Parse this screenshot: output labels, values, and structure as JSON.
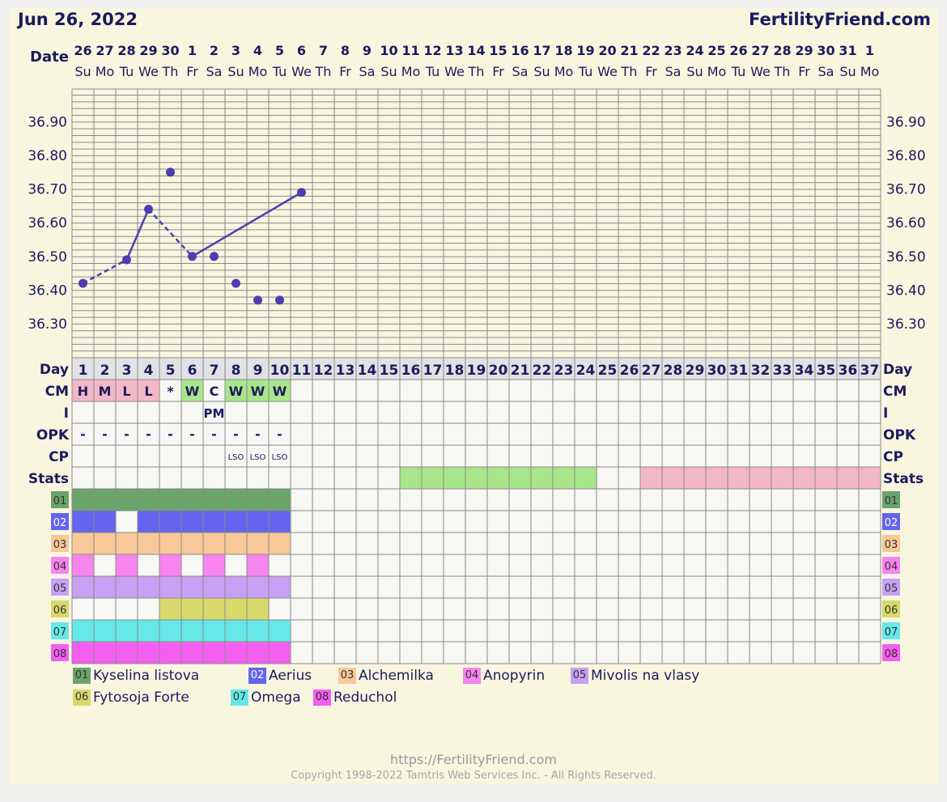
{
  "header": {
    "date": "Jun 26, 2022",
    "site": "FertilityFriend.com"
  },
  "colors": {
    "line": "#4b3fb0",
    "grid": "#8a8a8a",
    "chart_bg": "#f9f6e0",
    "cell_bg": "#f7f7f3",
    "day_row_bg": "#e2e2e4",
    "text": "#1c1a5e",
    "cm_pink": "#f2b8c8",
    "cm_green": "#a9e58a",
    "stats_green": "#a9e58a",
    "stats_pink": "#f2b8c8"
  },
  "chart_data": {
    "type": "line",
    "title": "",
    "xlabel": "Date",
    "ylabel": "",
    "ylim": [
      36.22,
      37.0
    ],
    "yticks": [
      "36.30",
      "36.40",
      "36.50",
      "36.60",
      "36.70",
      "36.80",
      "36.90"
    ],
    "dates": [
      "26",
      "27",
      "28",
      "29",
      "30",
      "1",
      "2",
      "3",
      "4",
      "5",
      "6",
      "7",
      "8",
      "9",
      "10",
      "11",
      "12",
      "13",
      "14",
      "15",
      "16",
      "17",
      "18",
      "19",
      "20",
      "21",
      "22",
      "23",
      "24",
      "25",
      "26",
      "27",
      "28",
      "29",
      "30",
      "31",
      "1"
    ],
    "weekdays": [
      "Su",
      "Mo",
      "Tu",
      "We",
      "Th",
      "Fr",
      "Sa",
      "Su",
      "Mo",
      "Tu",
      "We",
      "Th",
      "Fr",
      "Sa",
      "Su",
      "Mo",
      "Tu",
      "We",
      "Th",
      "Fr",
      "Sa",
      "Su",
      "Mo",
      "Tu",
      "We",
      "Th",
      "Fr",
      "Sa",
      "Su",
      "Mo",
      "Tu",
      "We",
      "Th",
      "Fr",
      "Sa",
      "Su",
      "Mo"
    ],
    "cycle_days": [
      "1",
      "2",
      "3",
      "4",
      "5",
      "6",
      "7",
      "8",
      "9",
      "10",
      "11",
      "12",
      "13",
      "14",
      "15",
      "16",
      "17",
      "18",
      "19",
      "20",
      "21",
      "22",
      "23",
      "24",
      "25",
      "26",
      "27",
      "28",
      "29",
      "30",
      "31",
      "32",
      "33",
      "34",
      "35",
      "36",
      "37"
    ],
    "temperatures": [
      {
        "day": 1,
        "value": 36.42
      },
      {
        "day": 3,
        "value": 36.49
      },
      {
        "day": 4,
        "value": 36.64
      },
      {
        "day": 5,
        "value": 36.75,
        "discarded": true
      },
      {
        "day": 6,
        "value": 36.5
      },
      {
        "day": 7,
        "value": 36.5
      },
      {
        "day": 8,
        "value": 36.42
      },
      {
        "day": 9,
        "value": 36.37
      },
      {
        "day": 10,
        "value": 36.37
      },
      {
        "day": 11,
        "value": 36.69
      }
    ],
    "segments": [
      {
        "from": 1,
        "to": 3,
        "style": "dashed"
      },
      {
        "from": 3,
        "to": 4,
        "style": "solid"
      },
      {
        "from": 4,
        "to": 6,
        "style": "dashed"
      },
      {
        "from": 6,
        "to": 11,
        "style": "solid"
      }
    ],
    "row_labels": [
      "CM",
      "I",
      "OPK",
      "CP",
      "Stats"
    ],
    "day_label": "Day",
    "cm": [
      {
        "day": 1,
        "text": "H",
        "color": "pink"
      },
      {
        "day": 2,
        "text": "M",
        "color": "pink"
      },
      {
        "day": 3,
        "text": "L",
        "color": "pink"
      },
      {
        "day": 4,
        "text": "L",
        "color": "pink"
      },
      {
        "day": 5,
        "text": "*",
        "color": "none"
      },
      {
        "day": 6,
        "text": "W",
        "color": "green"
      },
      {
        "day": 7,
        "text": "C",
        "color": "none"
      },
      {
        "day": 8,
        "text": "W",
        "color": "green"
      },
      {
        "day": 9,
        "text": "W",
        "color": "green"
      },
      {
        "day": 10,
        "text": "W",
        "color": "green"
      }
    ],
    "intercourse": [
      {
        "day": 7,
        "text": "PM"
      }
    ],
    "opk": [
      {
        "day": 1,
        "text": "-"
      },
      {
        "day": 2,
        "text": "-"
      },
      {
        "day": 3,
        "text": "-"
      },
      {
        "day": 4,
        "text": "-"
      },
      {
        "day": 5,
        "text": "-"
      },
      {
        "day": 6,
        "text": "-"
      },
      {
        "day": 7,
        "text": "-"
      },
      {
        "day": 8,
        "text": "-"
      },
      {
        "day": 9,
        "text": "-"
      },
      {
        "day": 10,
        "text": "-"
      }
    ],
    "cp": [
      {
        "day": 8,
        "text": "LSO"
      },
      {
        "day": 9,
        "text": "LSO"
      },
      {
        "day": 10,
        "text": "LSO"
      }
    ],
    "stats": [
      {
        "from": 16,
        "to": 24,
        "color": "green"
      },
      {
        "from": 27,
        "to": 37,
        "color": "pink"
      }
    ],
    "supplements": [
      {
        "code": "01",
        "name": "Kyselina listova",
        "color": "#6aa46a",
        "days": [
          1,
          2,
          3,
          4,
          5,
          6,
          7,
          8,
          9,
          10
        ]
      },
      {
        "code": "02",
        "name": "Aerius",
        "color": "#6464ee",
        "days": [
          1,
          2,
          4,
          5,
          6,
          7,
          8,
          9,
          10
        ]
      },
      {
        "code": "03",
        "name": "Alchemilka",
        "color": "#f8c898",
        "days": [
          1,
          2,
          3,
          4,
          5,
          6,
          7,
          8,
          9,
          10
        ]
      },
      {
        "code": "04",
        "name": "Anopyrin",
        "color": "#f884f0",
        "days": [
          1,
          3,
          5,
          7,
          9
        ]
      },
      {
        "code": "05",
        "name": "Mivolis na vlasy",
        "color": "#c8a0f4",
        "days": [
          1,
          2,
          3,
          4,
          5,
          6,
          7,
          8,
          9,
          10
        ]
      },
      {
        "code": "06",
        "name": "Fytosoja Forte",
        "color": "#d8d86c",
        "days": [
          5,
          6,
          7,
          8,
          9
        ]
      },
      {
        "code": "07",
        "name": "Omega",
        "color": "#66e8ea",
        "days": [
          1,
          2,
          3,
          4,
          5,
          6,
          7,
          8,
          9,
          10
        ]
      },
      {
        "code": "08",
        "name": "Reduchol",
        "color": "#f45ef0",
        "days": [
          1,
          2,
          3,
          4,
          5,
          6,
          7,
          8,
          9,
          10
        ]
      }
    ]
  },
  "footer": {
    "url": "https://FertilityFriend.com",
    "copyright": "Copyright 1998-2022 Tamtris Web Services Inc. - All Rights Reserved."
  }
}
